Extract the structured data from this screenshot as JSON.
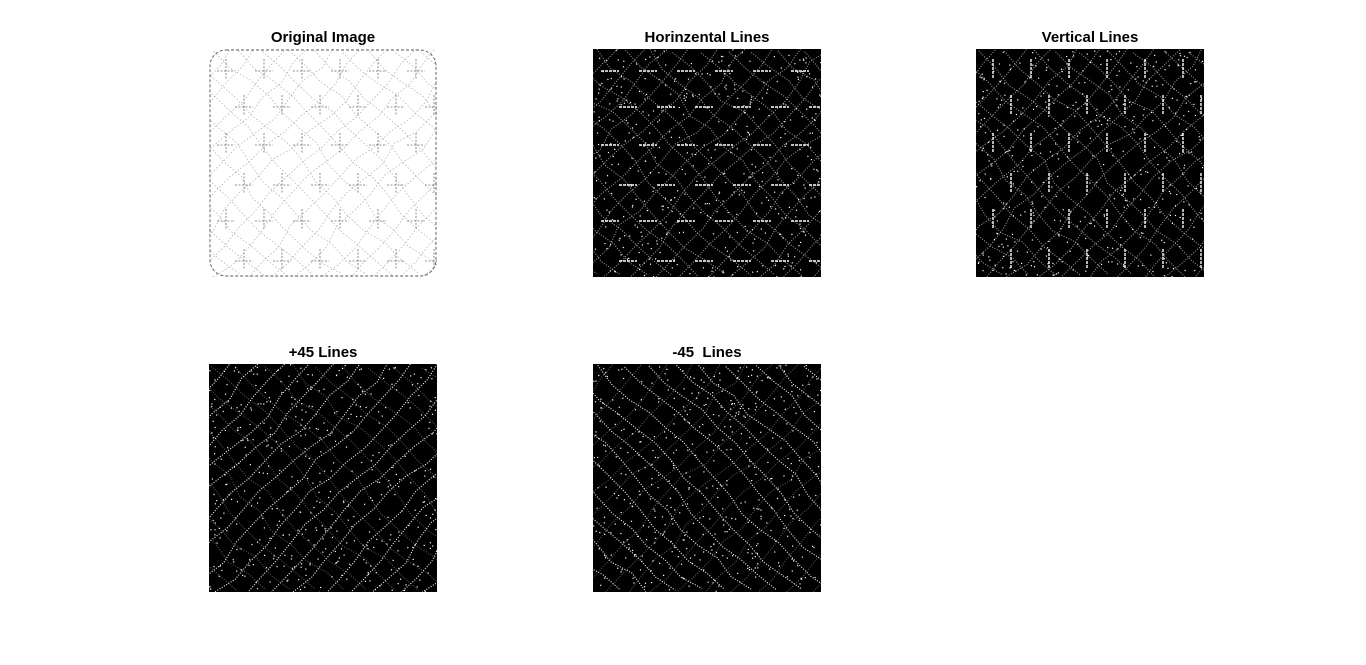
{
  "figure": {
    "panels": [
      {
        "title": "Original Image",
        "image": "original-sketch-texture",
        "background": "#ffffff",
        "stroke": "#707070"
      },
      {
        "title": "Horinzental Lines",
        "image": "horizontal-edge-map",
        "background": "#000000",
        "stroke": "#ffffff"
      },
      {
        "title": "Vertical Lines",
        "image": "vertical-edge-map",
        "background": "#000000",
        "stroke": "#ffffff"
      },
      {
        "title": "+45 Lines",
        "image": "plus45-edge-map",
        "background": "#000000",
        "stroke": "#ffffff"
      },
      {
        "title": "-45  Lines",
        "image": "minus45-edge-map",
        "background": "#000000",
        "stroke": "#ffffff"
      }
    ]
  }
}
